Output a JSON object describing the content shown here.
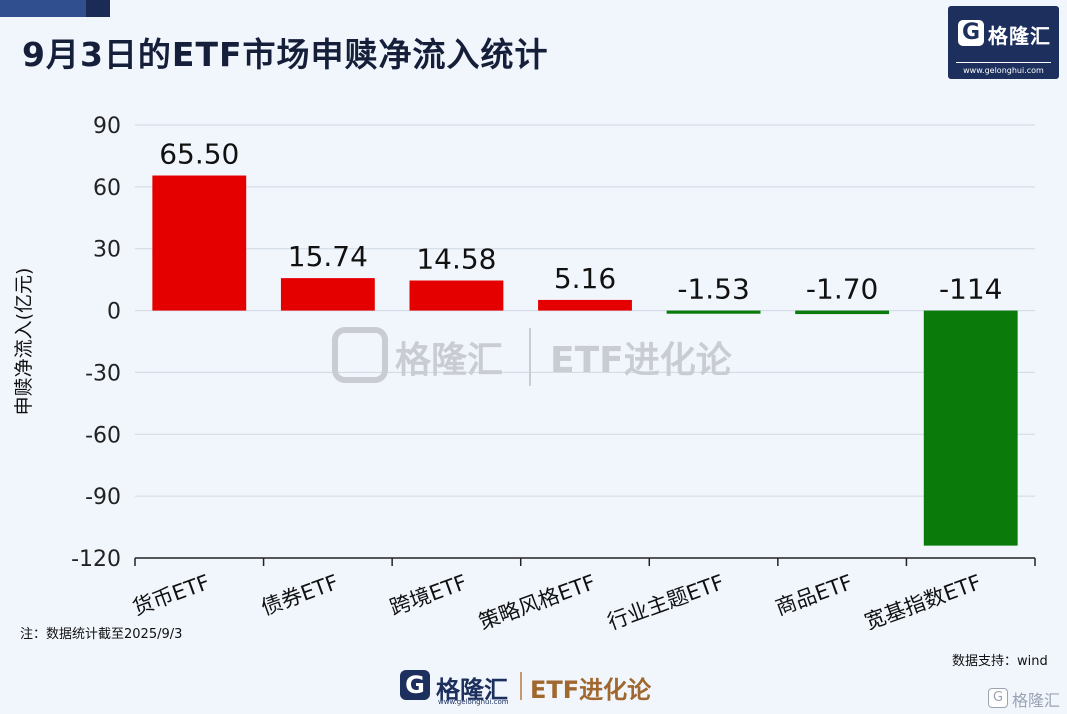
{
  "header": {
    "title": "9月3日的ETF市场申赎净流入统计"
  },
  "brand": {
    "logo_letter": "G",
    "logo_name": "格隆汇",
    "logo_url": "www.gelonghui.com",
    "product": "ETF进化论"
  },
  "footer": {
    "note": "注：数据统计截至2025/9/3",
    "source": "数据支持：wind"
  },
  "colors": {
    "positive": "#e50000",
    "negative": "#0a7a0a",
    "grid": "#cfd8e4",
    "axis": "#222222",
    "background": "#f1f6fd"
  },
  "chart_data": {
    "type": "bar",
    "categories": [
      "货币ETF",
      "债券ETF",
      "跨境ETF",
      "策略风格ETF",
      "行业主题ETF",
      "商品ETF",
      "宽基指数ETF"
    ],
    "values": [
      65.5,
      15.74,
      14.58,
      5.16,
      -1.53,
      -1.7,
      -114
    ],
    "data_labels": [
      "65.50",
      "15.74",
      "14.58",
      "5.16",
      "-1.53",
      "-1.70",
      "-114"
    ],
    "ylabel": "申赎净流入(亿元)",
    "xlabel": "",
    "ylim": [
      -120,
      90
    ],
    "yticks": [
      90,
      60,
      30,
      0,
      -30,
      -60,
      -90,
      -120
    ],
    "grid": true,
    "legend": "none"
  }
}
